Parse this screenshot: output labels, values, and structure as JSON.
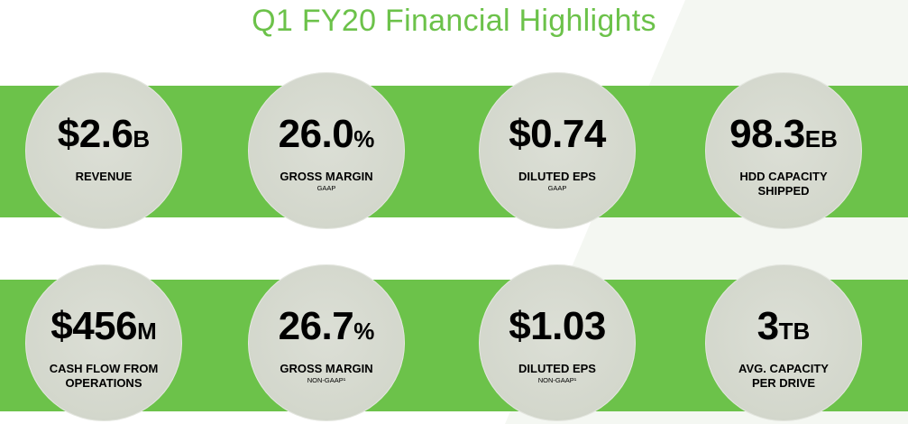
{
  "title": "Q1 FY20 Financial Highlights",
  "colors": {
    "accent": "#6cc24a",
    "circle": "#d3d7cc",
    "text": "#000000"
  },
  "row1": [
    {
      "value": "$2.6",
      "unit": "B",
      "label": "REVENUE",
      "label2": "",
      "sub": ""
    },
    {
      "value": "26.0",
      "unit": "%",
      "label": "GROSS MARGIN",
      "label2": "",
      "sub": "GAAP"
    },
    {
      "value": "$0.74",
      "unit": "",
      "label": "DILUTED EPS",
      "label2": "",
      "sub": "GAAP"
    },
    {
      "value": "98.3",
      "unit": "EB",
      "label": "HDD CAPACITY",
      "label2": "SHIPPED",
      "sub": ""
    }
  ],
  "row2": [
    {
      "value": "$456",
      "unit": "M",
      "label": "CASH FLOW FROM",
      "label2": "OPERATIONS",
      "sub": ""
    },
    {
      "value": "26.7",
      "unit": "%",
      "label": "GROSS MARGIN",
      "label2": "",
      "sub": "NON-GAAP¹"
    },
    {
      "value": "$1.03",
      "unit": "",
      "label": "DILUTED EPS",
      "label2": "",
      "sub": "NON-GAAP¹"
    },
    {
      "value": "3",
      "unit": "TB",
      "label": "AVG. CAPACITY",
      "label2": "PER DRIVE",
      "sub": ""
    }
  ]
}
